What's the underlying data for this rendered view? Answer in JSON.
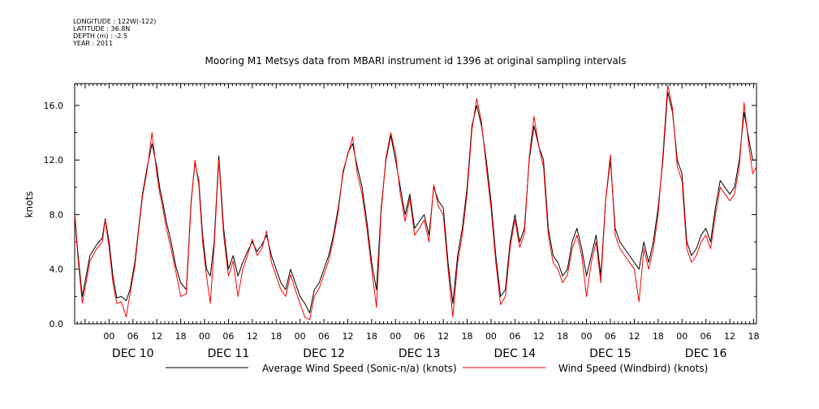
{
  "meta": {
    "longitude": "LONGITUDE : 122W(-122)",
    "latitude": "LATITUDE : 36.8N",
    "depth": "DEPTH (m) : -2.5",
    "year": "YEAR : 2011"
  },
  "chart_data": {
    "type": "line",
    "title": "Mooring M1 Metsys data from MBARI instrument id 1396 at original sampling intervals",
    "ylabel": "knots",
    "xlabel": "",
    "ylim": [
      0,
      17.6
    ],
    "xlim": [
      -0.36,
      6.78
    ],
    "yticks": [
      0,
      4,
      8,
      12,
      16
    ],
    "ytick_labels": [
      "0.0",
      "4.0",
      "8.0",
      "12.0",
      "16.0"
    ],
    "x_unit": "days since DEC 10 00:00",
    "hour_ticks": [
      "00",
      "06",
      "12",
      "18",
      "00",
      "06",
      "12",
      "18",
      "00",
      "06",
      "12",
      "18",
      "00",
      "06",
      "12",
      "18",
      "00",
      "06",
      "12",
      "18",
      "00",
      "06",
      "12",
      "18",
      "00",
      "06",
      "12",
      "18"
    ],
    "day_labels": [
      "DEC 10",
      "DEC 11",
      "DEC 12",
      "DEC 13",
      "DEC 14",
      "DEC 15",
      "DEC 16"
    ],
    "grid": false,
    "legend_position": "bottom",
    "series": [
      {
        "name": "Average Wind Speed (Sonic-n/a) (knots)",
        "color": "#000000",
        "x": [
          -0.36,
          -0.33,
          -0.28,
          -0.2,
          -0.13,
          -0.07,
          -0.04,
          0.0,
          0.04,
          0.08,
          0.13,
          0.18,
          0.22,
          0.27,
          0.31,
          0.35,
          0.4,
          0.45,
          0.5,
          0.53,
          0.56,
          0.6,
          0.65,
          0.7,
          0.75,
          0.81,
          0.86,
          0.9,
          0.94,
          0.98,
          1.02,
          1.06,
          1.1,
          1.15,
          1.2,
          1.25,
          1.3,
          1.35,
          1.4,
          1.45,
          1.5,
          1.55,
          1.6,
          1.65,
          1.7,
          1.75,
          1.8,
          1.85,
          1.9,
          1.95,
          2.0,
          2.05,
          2.1,
          2.15,
          2.2,
          2.25,
          2.3,
          2.35,
          2.4,
          2.45,
          2.5,
          2.55,
          2.6,
          2.65,
          2.7,
          2.75,
          2.8,
          2.85,
          2.9,
          2.95,
          3.0,
          3.05,
          3.1,
          3.15,
          3.2,
          3.25,
          3.3,
          3.35,
          3.4,
          3.45,
          3.5,
          3.55,
          3.6,
          3.65,
          3.7,
          3.75,
          3.8,
          3.85,
          3.9,
          3.95,
          4.0,
          4.05,
          4.1,
          4.15,
          4.2,
          4.25,
          4.3,
          4.35,
          4.4,
          4.45,
          4.5,
          4.55,
          4.6,
          4.65,
          4.7,
          4.75,
          4.8,
          4.85,
          4.9,
          4.95,
          5.0,
          5.05,
          5.1,
          5.15,
          5.2,
          5.25,
          5.3,
          5.35,
          5.4,
          5.45,
          5.5,
          5.55,
          5.6,
          5.65,
          5.7,
          5.75,
          5.8,
          5.85,
          5.9,
          5.95,
          6.0,
          6.05,
          6.1,
          6.15,
          6.2,
          6.25,
          6.3,
          6.35,
          6.4,
          6.45,
          6.5,
          6.55,
          6.6,
          6.65,
          6.7,
          6.74,
          6.78
        ],
        "y": [
          8.2,
          5.5,
          2.0,
          5.0,
          5.8,
          6.3,
          7.7,
          6.0,
          3.5,
          1.9,
          2.0,
          1.7,
          2.5,
          4.5,
          7.0,
          9.5,
          11.5,
          13.2,
          11.5,
          10.0,
          9.0,
          7.5,
          6.0,
          4.2,
          3.0,
          2.5,
          9.0,
          11.8,
          10.5,
          6.5,
          4.0,
          3.5,
          6.0,
          12.3,
          7.0,
          4.0,
          5.0,
          3.5,
          4.5,
          5.3,
          6.0,
          5.3,
          5.8,
          6.5,
          5.0,
          4.0,
          3.0,
          2.5,
          4.0,
          3.0,
          2.0,
          1.5,
          0.8,
          2.5,
          3.0,
          4.0,
          5.0,
          6.5,
          8.5,
          11.0,
          12.5,
          13.2,
          11.5,
          10.0,
          7.5,
          4.5,
          2.5,
          8.5,
          12.0,
          13.8,
          12.0,
          10.0,
          8.0,
          9.5,
          7.0,
          7.5,
          8.0,
          6.5,
          10.0,
          9.0,
          8.5,
          4.5,
          1.5,
          5.0,
          7.0,
          10.0,
          14.5,
          16.0,
          14.5,
          12.0,
          9.0,
          5.0,
          2.0,
          2.5,
          6.0,
          8.0,
          6.0,
          7.0,
          12.0,
          14.5,
          13.0,
          12.0,
          7.0,
          5.0,
          4.5,
          3.5,
          4.0,
          6.0,
          7.0,
          5.5,
          3.5,
          5.0,
          6.5,
          3.5,
          9.0,
          12.0,
          7.0,
          6.0,
          5.5,
          5.0,
          4.5,
          4.0,
          6.0,
          4.5,
          6.0,
          8.5,
          12.0,
          17.0,
          15.5,
          12.0,
          11.0,
          6.0,
          5.0,
          5.5,
          6.5,
          7.0,
          6.0,
          8.5,
          10.5,
          10.0,
          9.5,
          10.0,
          12.0,
          15.5,
          13.5,
          12.0,
          12.0
        ]
      },
      {
        "name": "Wind Speed (Windbird) (knots)",
        "color": "#ff0000",
        "x": [
          -0.36,
          -0.33,
          -0.28,
          -0.2,
          -0.13,
          -0.07,
          -0.04,
          0.0,
          0.04,
          0.08,
          0.13,
          0.18,
          0.22,
          0.27,
          0.31,
          0.35,
          0.4,
          0.45,
          0.5,
          0.53,
          0.56,
          0.6,
          0.65,
          0.7,
          0.75,
          0.81,
          0.86,
          0.9,
          0.94,
          0.98,
          1.02,
          1.06,
          1.1,
          1.15,
          1.2,
          1.25,
          1.3,
          1.35,
          1.4,
          1.45,
          1.5,
          1.55,
          1.6,
          1.65,
          1.7,
          1.75,
          1.8,
          1.85,
          1.9,
          1.95,
          2.0,
          2.05,
          2.1,
          2.15,
          2.2,
          2.25,
          2.3,
          2.35,
          2.4,
          2.45,
          2.5,
          2.55,
          2.6,
          2.65,
          2.7,
          2.75,
          2.8,
          2.85,
          2.9,
          2.95,
          3.0,
          3.05,
          3.1,
          3.15,
          3.2,
          3.25,
          3.3,
          3.35,
          3.4,
          3.45,
          3.5,
          3.55,
          3.6,
          3.65,
          3.7,
          3.75,
          3.8,
          3.85,
          3.9,
          3.95,
          4.0,
          4.05,
          4.1,
          4.15,
          4.2,
          4.25,
          4.3,
          4.35,
          4.4,
          4.45,
          4.5,
          4.55,
          4.6,
          4.65,
          4.7,
          4.75,
          4.8,
          4.85,
          4.9,
          4.95,
          5.0,
          5.05,
          5.1,
          5.15,
          5.2,
          5.25,
          5.3,
          5.35,
          5.4,
          5.45,
          5.5,
          5.55,
          5.6,
          5.65,
          5.7,
          5.75,
          5.8,
          5.85,
          5.9,
          5.95,
          6.0,
          6.05,
          6.1,
          6.15,
          6.2,
          6.25,
          6.3,
          6.35,
          6.4,
          6.45,
          6.5,
          6.55,
          6.6,
          6.65,
          6.7,
          6.74,
          6.78
        ],
        "y": [
          8.0,
          5.2,
          1.5,
          4.6,
          5.5,
          6.0,
          7.6,
          5.6,
          3.0,
          1.5,
          1.6,
          0.5,
          2.2,
          4.2,
          6.8,
          9.3,
          11.3,
          14.0,
          11.0,
          9.6,
          8.6,
          7.0,
          5.5,
          3.8,
          2.0,
          2.2,
          8.8,
          12.0,
          10.2,
          6.0,
          3.5,
          1.5,
          5.6,
          12.0,
          6.5,
          3.5,
          4.6,
          2.0,
          4.0,
          5.0,
          6.2,
          5.0,
          5.5,
          6.8,
          4.5,
          3.5,
          2.5,
          2.0,
          3.6,
          2.5,
          1.5,
          0.5,
          0.3,
          2.0,
          2.6,
          3.6,
          4.6,
          6.2,
          8.2,
          11.2,
          12.4,
          13.7,
          11.0,
          9.5,
          7.0,
          4.0,
          1.2,
          8.2,
          12.2,
          14.0,
          12.5,
          9.5,
          7.5,
          9.2,
          6.5,
          7.0,
          7.6,
          6.0,
          10.2,
          8.6,
          8.0,
          4.0,
          0.5,
          4.5,
          6.5,
          9.6,
          14.2,
          16.5,
          14.8,
          11.5,
          8.5,
          4.5,
          1.4,
          2.0,
          5.6,
          7.6,
          5.6,
          6.6,
          12.2,
          15.2,
          13.0,
          11.5,
          6.5,
          4.5,
          4.0,
          3.0,
          3.6,
          5.5,
          6.5,
          5.0,
          2.0,
          4.5,
          6.0,
          3.0,
          9.0,
          12.4,
          6.5,
          5.5,
          5.0,
          4.5,
          4.0,
          1.6,
          5.5,
          4.0,
          5.5,
          8.0,
          12.4,
          17.5,
          15.8,
          11.5,
          10.5,
          5.5,
          4.5,
          5.0,
          6.0,
          6.5,
          5.5,
          8.0,
          10.0,
          9.5,
          9.0,
          9.5,
          11.5,
          16.2,
          13.0,
          11.0,
          11.5
        ]
      }
    ]
  }
}
